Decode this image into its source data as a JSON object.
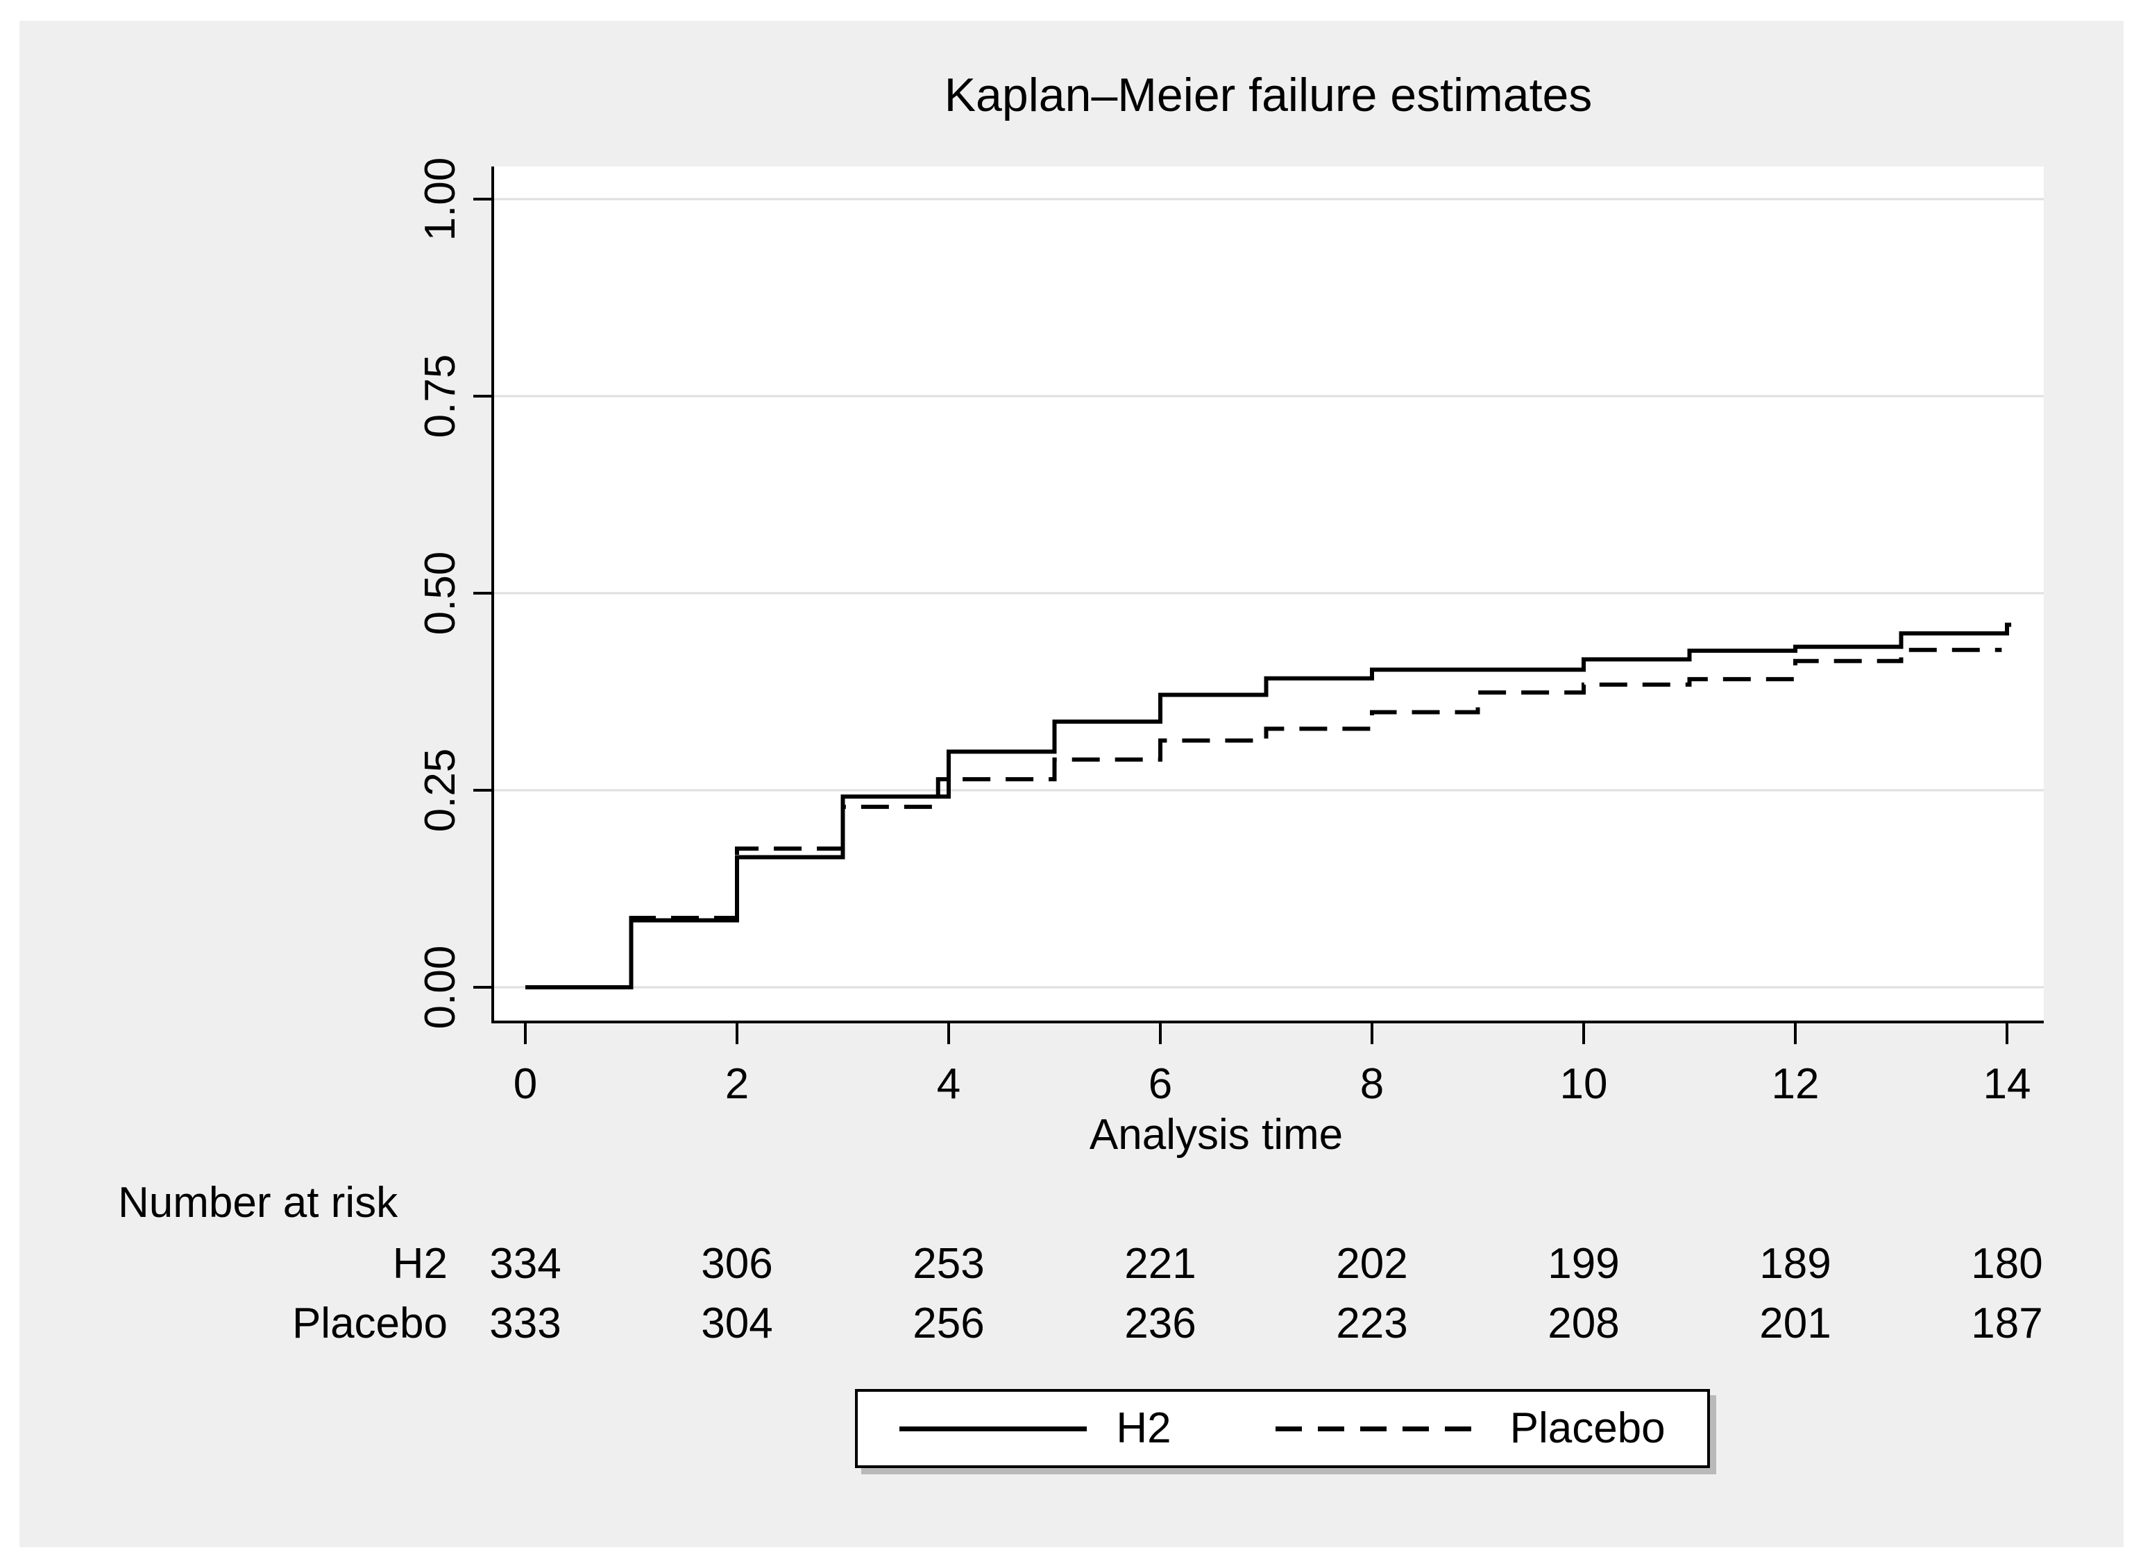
{
  "figure": {
    "panel_bg": "#efefef",
    "plot_bg": "#ffffff",
    "grid_color": "#dfdfdf",
    "axis_color": "#000000",
    "curve_color": "#000000"
  },
  "chart_data": {
    "type": "line",
    "subtype": "kaplan-meier-failure-step",
    "title": "Kaplan–Meier failure estimates",
    "xlabel": "Analysis time",
    "ylabel": "",
    "xticks": [
      0,
      2,
      4,
      6,
      8,
      10,
      12,
      14
    ],
    "ytick_labels": [
      "0.00",
      "0.25",
      "0.50",
      "0.75",
      "1.00"
    ],
    "ytick_values": [
      0.0,
      0.25,
      0.5,
      0.75,
      1.0
    ],
    "xlim": [
      0,
      14.35
    ],
    "ylim": [
      0,
      1.04
    ],
    "grid": "horizontal",
    "legend_position": "bottom-center",
    "series": [
      {
        "name": "H2",
        "style": "solid",
        "steps": [
          [
            0,
            0
          ],
          [
            1,
            0.085
          ],
          [
            2,
            0.165
          ],
          [
            3,
            0.242
          ],
          [
            4,
            0.299
          ],
          [
            5,
            0.337
          ],
          [
            6,
            0.371
          ],
          [
            7,
            0.392
          ],
          [
            8,
            0.403
          ],
          [
            10,
            0.416
          ],
          [
            11,
            0.427
          ],
          [
            12,
            0.432
          ],
          [
            13,
            0.449
          ],
          [
            14,
            0.46
          ]
        ],
        "end_time": 14.04
      },
      {
        "name": "Placebo",
        "style": "dashed",
        "steps": [
          [
            0,
            0
          ],
          [
            1,
            0.088
          ],
          [
            2,
            0.176
          ],
          [
            3,
            0.229
          ],
          [
            3.9,
            0.264
          ],
          [
            5,
            0.289
          ],
          [
            6,
            0.313
          ],
          [
            7,
            0.328
          ],
          [
            8,
            0.349
          ],
          [
            9,
            0.374
          ],
          [
            10,
            0.384
          ],
          [
            11,
            0.391
          ],
          [
            12,
            0.414
          ],
          [
            13,
            0.428
          ]
        ],
        "end_time": 13.95
      }
    ],
    "number_at_risk": {
      "header": "Number at risk",
      "times": [
        0,
        2,
        4,
        6,
        8,
        10,
        12,
        14
      ],
      "rows": [
        {
          "label": "H2",
          "values": [
            334,
            306,
            253,
            221,
            202,
            199,
            189,
            180
          ]
        },
        {
          "label": "Placebo",
          "values": [
            333,
            304,
            256,
            236,
            223,
            208,
            201,
            187
          ]
        }
      ]
    }
  },
  "legend": {
    "items": [
      {
        "label": "H2",
        "style": "solid"
      },
      {
        "label": "Placebo",
        "style": "dashed"
      }
    ]
  }
}
